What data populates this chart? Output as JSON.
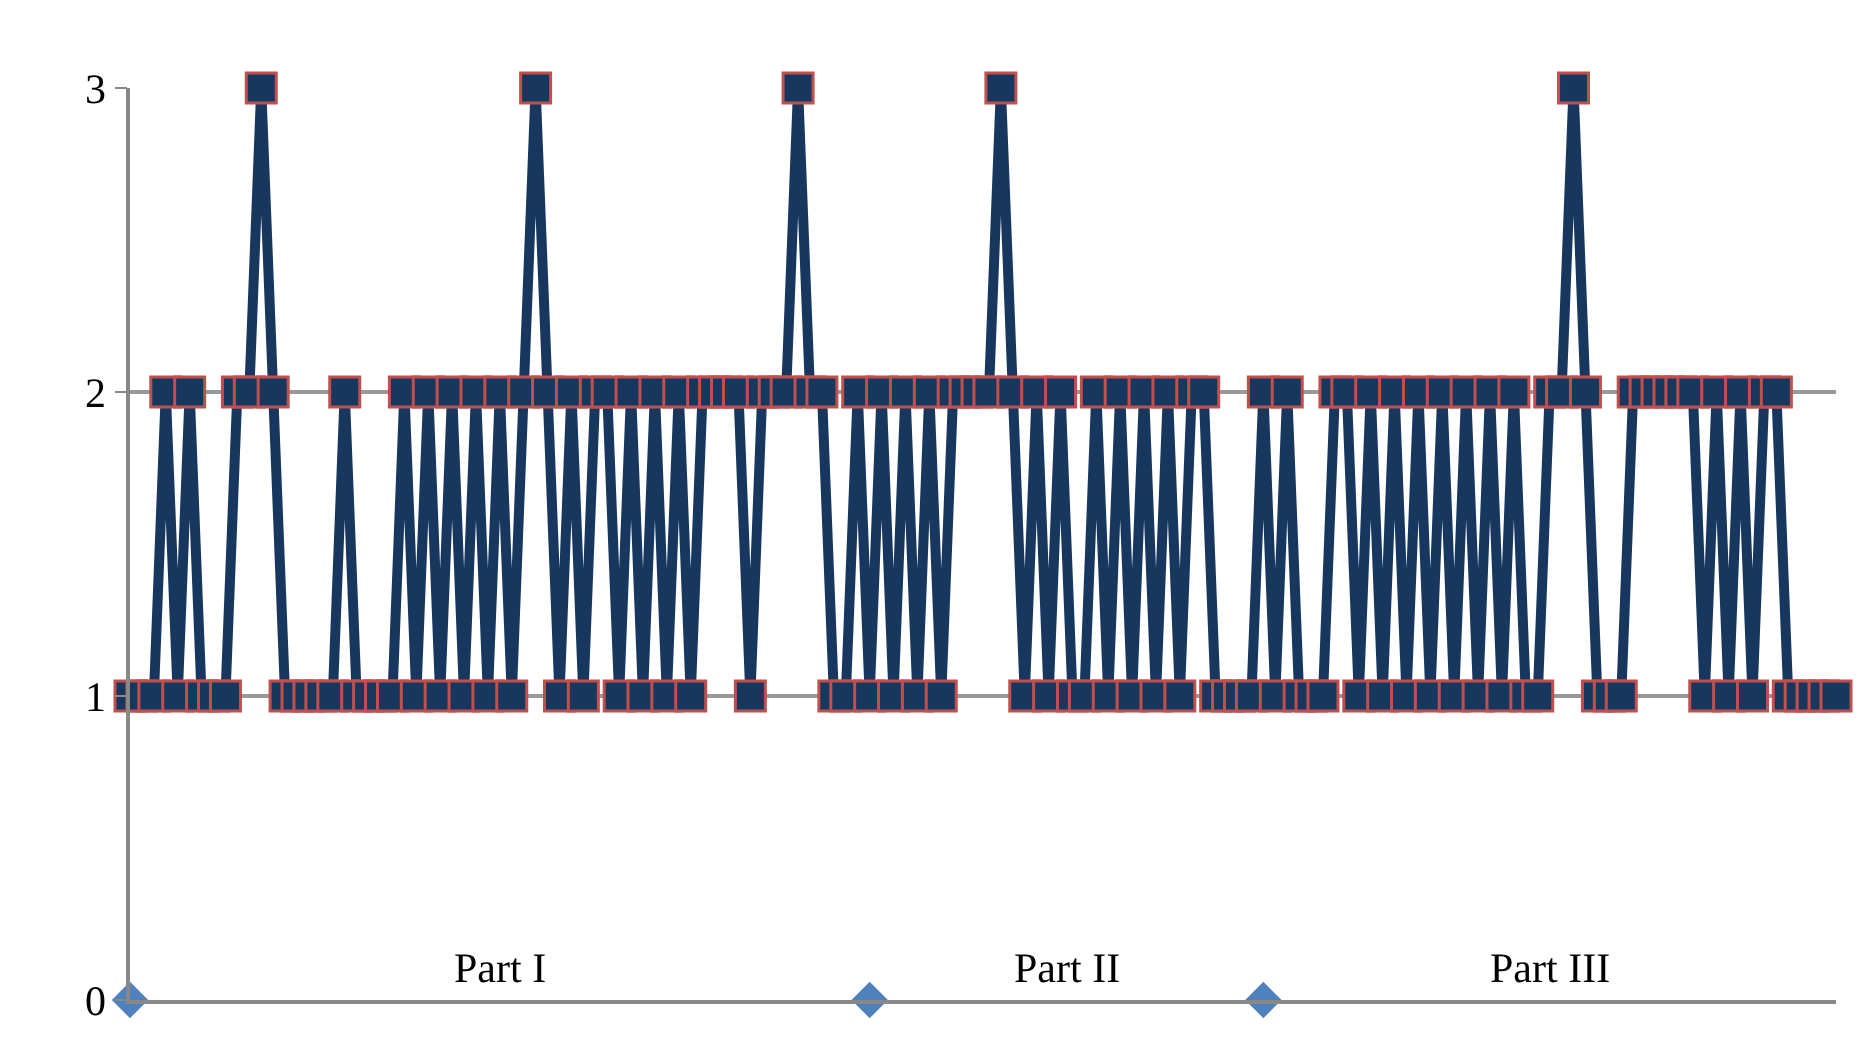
{
  "chart_data": {
    "type": "line",
    "categories": [
      null,
      null,
      null,
      null,
      null,
      null,
      null,
      null,
      null,
      null,
      null,
      null,
      null,
      null,
      null,
      null,
      null,
      null,
      null,
      null,
      null,
      null,
      null,
      null,
      null,
      null,
      null,
      null,
      null,
      null,
      null,
      null,
      null,
      null,
      null,
      null,
      null,
      null,
      null,
      null,
      null,
      null,
      null,
      null,
      null,
      null,
      null,
      null,
      null,
      null,
      null,
      null,
      null,
      null,
      null,
      null,
      null,
      null,
      null,
      null,
      null,
      null,
      null,
      null,
      null,
      null,
      null,
      null,
      null,
      null,
      null,
      null,
      null,
      null,
      null,
      null,
      null,
      null,
      null,
      null,
      null,
      null,
      null,
      null,
      null,
      null,
      null,
      null,
      null,
      null,
      null,
      null,
      null,
      null,
      null,
      null,
      null,
      null,
      null,
      null,
      null,
      null,
      null,
      null,
      null,
      null,
      null,
      null,
      null,
      null,
      null,
      null,
      null,
      null,
      null,
      null,
      null,
      null,
      null,
      null,
      null,
      null,
      null,
      null,
      null,
      null,
      null,
      null,
      null,
      null,
      null,
      null,
      null,
      null,
      null,
      null,
      null,
      null,
      null,
      null,
      null,
      null,
      null,
      null
    ],
    "series": [
      {
        "color": "#17375e",
        "marker": "square",
        "values": [
          1,
          1,
          1,
          2,
          1,
          2,
          1,
          1,
          1,
          2,
          2,
          3,
          2,
          1,
          1,
          1,
          1,
          1,
          2,
          1,
          1,
          1,
          1,
          2,
          1,
          2,
          1,
          2,
          1,
          2,
          1,
          2,
          1,
          2,
          3,
          2,
          1,
          2,
          1,
          2,
          2,
          1,
          2,
          1,
          2,
          1,
          2,
          1,
          2,
          2,
          2,
          2,
          1,
          2,
          2,
          2,
          3,
          2,
          2,
          1,
          1,
          2,
          1,
          2,
          1,
          2,
          1,
          2,
          1,
          2,
          2,
          2,
          2,
          3,
          2,
          1,
          2,
          1,
          2,
          1,
          1,
          2,
          1,
          2,
          1,
          2,
          1,
          2,
          1,
          2,
          2,
          1,
          1,
          1,
          1,
          2,
          1,
          2,
          1,
          1,
          1,
          2,
          2,
          1,
          2,
          1,
          2,
          1,
          2,
          1,
          2,
          1,
          2,
          1,
          2,
          1,
          2,
          1,
          1,
          2,
          2,
          3,
          2,
          1,
          1,
          1,
          2,
          2,
          2,
          2,
          2,
          2,
          1,
          2,
          1,
          2,
          1,
          2,
          2,
          1,
          1,
          1,
          1,
          1
        ]
      },
      {
        "type": "scatter",
        "color": "#4f81bd",
        "marker": "diamond",
        "values": [
          0,
          null,
          null,
          null,
          null,
          null,
          null,
          null,
          null,
          null,
          null,
          null,
          null,
          null,
          null,
          null,
          null,
          null,
          null,
          null,
          null,
          null,
          null,
          null,
          null,
          null,
          null,
          null,
          null,
          null,
          null,
          null,
          null,
          null,
          null,
          null,
          null,
          null,
          null,
          null,
          null,
          null,
          null,
          null,
          null,
          null,
          null,
          null,
          null,
          null,
          null,
          null,
          null,
          null,
          null,
          null,
          null,
          null,
          null,
          null,
          null,
          null,
          0,
          null,
          null,
          null,
          null,
          null,
          null,
          null,
          null,
          null,
          null,
          null,
          null,
          null,
          null,
          null,
          null,
          null,
          null,
          null,
          null,
          null,
          null,
          null,
          null,
          null,
          null,
          null,
          null,
          null,
          null,
          null,
          null,
          0,
          null,
          null,
          null,
          null,
          null,
          null,
          null,
          null,
          null,
          null,
          null,
          null,
          null,
          null,
          null,
          null,
          null,
          null,
          null,
          null,
          null,
          null,
          null,
          null,
          null,
          null,
          null,
          null,
          null,
          null,
          null,
          null,
          null,
          null,
          null,
          null,
          null,
          null,
          null,
          null,
          null,
          null,
          null,
          null,
          null,
          null,
          null,
          null
        ]
      }
    ],
    "annotations": [
      "Part I",
      "Part II",
      "Part III"
    ],
    "ylim": [
      0,
      3
    ],
    "yticks": [
      0,
      1,
      2,
      3
    ],
    "grid": "y",
    "line_style": "solid"
  }
}
